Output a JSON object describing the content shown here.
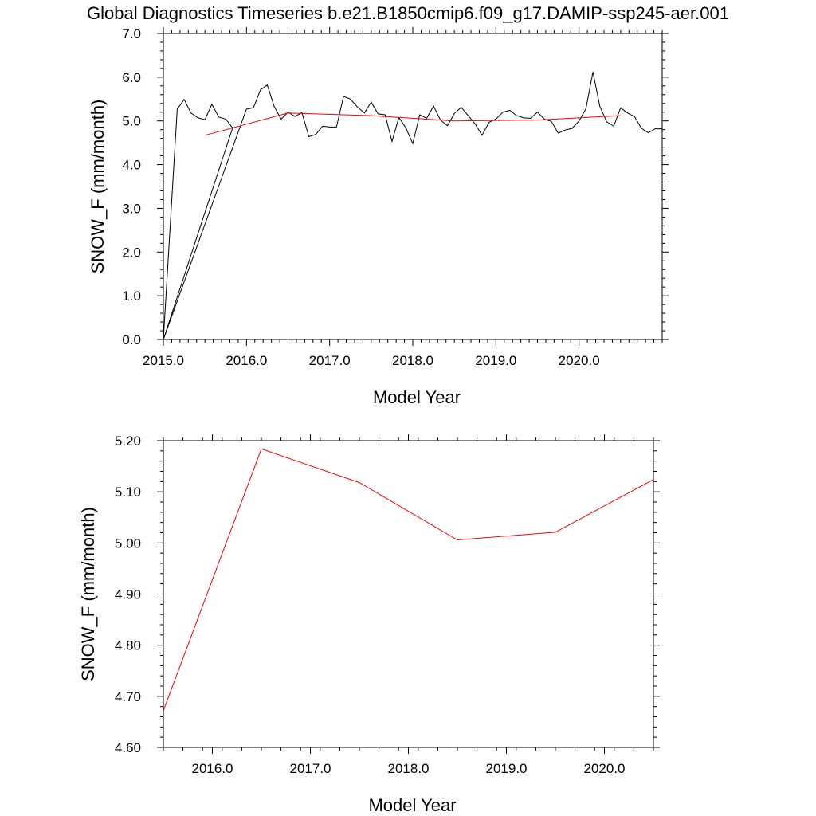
{
  "figure": {
    "title": "Global Diagnostics Timeseries b.e21.B1850cmip6.f09_g17.DAMIP-ssp245-aer.001"
  },
  "colors": {
    "monthly_line": "#000000",
    "annual_line": "#ff0000",
    "background": "#ffffff"
  },
  "chart_data": [
    {
      "type": "line",
      "title": "Global Diagnostics Timeseries b.e21.B1850cmip6.f09_g17.DAMIP-ssp245-aer.001",
      "xlabel": "Model Year",
      "ylabel": "SNOW_F (mm/month)",
      "xlim": [
        2015.0,
        2021.0
      ],
      "ylim": [
        0.0,
        7.0
      ],
      "x_ticks": [
        2015.0,
        2016.0,
        2017.0,
        2018.0,
        2019.0,
        2020.0
      ],
      "x_tick_labels": [
        "2015.0",
        "2016.0",
        "2017.0",
        "2018.0",
        "2019.0",
        "2020.0"
      ],
      "y_ticks": [
        0.0,
        1.0,
        2.0,
        3.0,
        4.0,
        5.0,
        6.0,
        7.0
      ],
      "y_tick_labels": [
        "0.0",
        "1.0",
        "2.0",
        "3.0",
        "4.0",
        "5.0",
        "6.0",
        "7.0"
      ],
      "grid": false,
      "series": [
        {
          "color": "#000000",
          "x": [
            2015.0,
            2015.167,
            2015.25,
            2015.333,
            2015.417,
            2015.5,
            2015.583,
            2015.667,
            2015.75,
            2015.833,
            2015.0,
            2016.0,
            2016.083,
            2016.167,
            2016.25,
            2016.333,
            2016.417,
            2016.5,
            2016.583,
            2016.667,
            2016.75,
            2016.833,
            2016.917,
            2017.0,
            2017.083,
            2017.167,
            2017.25,
            2017.333,
            2017.417,
            2017.5,
            2017.583,
            2017.667,
            2017.75,
            2017.833,
            2017.917,
            2018.0,
            2018.083,
            2018.167,
            2018.25,
            2018.333,
            2018.417,
            2018.5,
            2018.583,
            2018.667,
            2018.75,
            2018.833,
            2018.917,
            2019.0,
            2019.083,
            2019.167,
            2019.25,
            2019.333,
            2019.417,
            2019.5,
            2019.583,
            2019.667,
            2019.75,
            2019.833,
            2019.917,
            2020.0,
            2020.083,
            2020.167,
            2020.25,
            2020.333,
            2020.417,
            2020.5,
            2020.583,
            2020.667,
            2020.75,
            2020.833,
            2020.917,
            2021.0
          ],
          "y": [
            0.0,
            5.27,
            5.49,
            5.18,
            5.07,
            5.03,
            5.38,
            5.09,
            5.04,
            4.84,
            0.0,
            5.27,
            5.3,
            5.71,
            5.82,
            5.33,
            5.04,
            5.2,
            5.1,
            5.19,
            4.64,
            4.69,
            4.88,
            4.86,
            4.86,
            5.56,
            5.5,
            5.32,
            5.18,
            5.43,
            5.16,
            5.14,
            4.53,
            5.08,
            4.84,
            4.48,
            5.14,
            5.06,
            5.34,
            5.02,
            4.89,
            5.17,
            5.31,
            5.12,
            4.93,
            4.67,
            4.97,
            5.04,
            5.2,
            5.24,
            5.12,
            5.07,
            5.06,
            5.2,
            5.04,
            4.99,
            4.72,
            4.79,
            4.83,
            5.0,
            5.28,
            6.12,
            5.33,
            4.98,
            4.88,
            5.3,
            5.18,
            5.1,
            4.83,
            4.73,
            4.82,
            4.82
          ]
        },
        {
          "color": "#ff0000",
          "x": [
            2015.5,
            2016.5,
            2017.5,
            2018.5,
            2019.5,
            2020.5
          ],
          "y": [
            4.67,
            5.18,
            5.12,
            5.0,
            5.02,
            5.12
          ]
        }
      ]
    },
    {
      "type": "line",
      "xlabel": "Model Year",
      "ylabel": "SNOW_F (mm/month)",
      "xlim": [
        2015.5,
        2020.5
      ],
      "ylim": [
        4.6,
        5.2
      ],
      "x_ticks": [
        2016.0,
        2017.0,
        2018.0,
        2019.0,
        2020.0
      ],
      "x_tick_labels": [
        "2016.0",
        "2017.0",
        "2018.0",
        "2019.0",
        "2020.0"
      ],
      "y_ticks": [
        4.6,
        4.7,
        4.8,
        4.9,
        5.0,
        5.1,
        5.2
      ],
      "y_tick_labels": [
        "4.60",
        "4.70",
        "4.80",
        "4.90",
        "5.00",
        "5.10",
        "5.20"
      ],
      "grid": false,
      "series": [
        {
          "color": "#ff0000",
          "x": [
            2015.5,
            2016.5,
            2017.5,
            2018.5,
            2019.5,
            2020.5
          ],
          "y": [
            4.672,
            5.184,
            5.118,
            5.006,
            5.021,
            5.124
          ]
        }
      ]
    }
  ]
}
